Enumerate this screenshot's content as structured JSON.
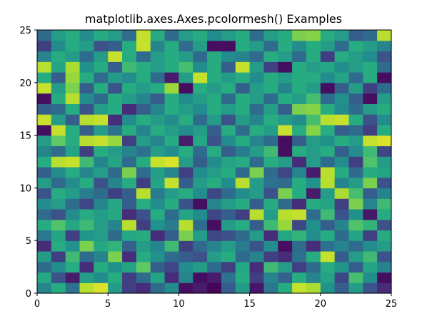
{
  "chart_data": {
    "type": "heatmap",
    "title": "matplotlib.axes.Axes.pcolormesh() Examples",
    "xlabel": "",
    "ylabel": "",
    "xlim": [
      0,
      25
    ],
    "ylim": [
      0,
      25
    ],
    "xticks": [
      0,
      5,
      10,
      15,
      20,
      25
    ],
    "yticks": [
      0,
      5,
      10,
      15,
      20,
      25
    ],
    "grid": false,
    "colormap": "viridis",
    "value_range": [
      0,
      1
    ],
    "rows": 25,
    "cols": 25,
    "values": [
      [
        0.45,
        0.62,
        0.38,
        0.9,
        0.95,
        0.55,
        0.2,
        0.15,
        0.35,
        0.48,
        0.05,
        0.1,
        0.02,
        0.3,
        0.55,
        0.08,
        0.4,
        0.62,
        0.92,
        0.88,
        0.5,
        0.3,
        0.55,
        0.25,
        0.15
      ],
      [
        0.6,
        0.25,
        0.1,
        0.55,
        0.48,
        0.62,
        0.2,
        0.35,
        0.58,
        0.15,
        0.45,
        0.05,
        0.1,
        0.38,
        0.62,
        0.2,
        0.45,
        0.32,
        0.62,
        0.45,
        0.58,
        0.22,
        0.7,
        0.48,
        0.05
      ],
      [
        0.35,
        0.48,
        0.62,
        0.15,
        0.62,
        0.5,
        0.58,
        0.75,
        0.3,
        0.22,
        0.48,
        0.55,
        0.35,
        0.2,
        0.6,
        0.15,
        0.68,
        0.55,
        0.2,
        0.35,
        0.62,
        0.52,
        0.3,
        0.58,
        0.45
      ],
      [
        0.55,
        0.2,
        0.68,
        0.35,
        0.45,
        0.8,
        0.15,
        0.62,
        0.5,
        0.35,
        0.3,
        0.25,
        0.55,
        0.62,
        0.35,
        0.45,
        0.2,
        0.15,
        0.38,
        0.62,
        0.92,
        0.3,
        0.55,
        0.68,
        0.25
      ],
      [
        0.15,
        0.62,
        0.5,
        0.8,
        0.6,
        0.65,
        0.32,
        0.55,
        0.45,
        0.68,
        0.2,
        0.35,
        0.45,
        0.55,
        0.42,
        0.25,
        0.48,
        0.05,
        0.35,
        0.15,
        0.38,
        0.45,
        0.35,
        0.48,
        0.55
      ],
      [
        0.4,
        0.58,
        0.2,
        0.52,
        0.55,
        0.35,
        0.6,
        0.62,
        0.15,
        0.3,
        0.8,
        0.55,
        0.22,
        0.25,
        0.35,
        0.55,
        0.15,
        0.6,
        0.65,
        0.48,
        0.62,
        0.35,
        0.58,
        0.2,
        0.62
      ],
      [
        0.62,
        0.72,
        0.6,
        0.68,
        0.55,
        0.45,
        0.9,
        0.2,
        0.5,
        0.42,
        0.9,
        0.35,
        0.05,
        0.55,
        0.62,
        0.3,
        0.68,
        0.85,
        0.22,
        0.5,
        0.3,
        0.45,
        0.72,
        0.65,
        0.25
      ],
      [
        0.35,
        0.25,
        0.48,
        0.62,
        0.55,
        0.6,
        0.15,
        0.25,
        0.62,
        0.35,
        0.58,
        0.48,
        0.22,
        0.3,
        0.2,
        0.9,
        0.55,
        0.9,
        0.92,
        0.35,
        0.68,
        0.25,
        0.5,
        0.08,
        0.62
      ],
      [
        0.48,
        0.55,
        0.35,
        0.22,
        0.45,
        0.6,
        0.3,
        0.62,
        0.48,
        0.62,
        0.25,
        0.05,
        0.45,
        0.55,
        0.62,
        0.3,
        0.62,
        0.35,
        0.15,
        0.62,
        0.58,
        0.2,
        0.8,
        0.45,
        0.68
      ],
      [
        0.25,
        0.62,
        0.55,
        0.42,
        0.35,
        0.2,
        0.3,
        0.9,
        0.42,
        0.55,
        0.62,
        0.48,
        0.22,
        0.35,
        0.48,
        0.55,
        0.25,
        0.8,
        0.62,
        0.1,
        0.55,
        0.88,
        0.7,
        0.3,
        0.45
      ],
      [
        0.55,
        0.35,
        0.48,
        0.62,
        0.25,
        0.45,
        0.62,
        0.2,
        0.58,
        0.92,
        0.3,
        0.55,
        0.62,
        0.48,
        0.9,
        0.55,
        0.38,
        0.35,
        0.62,
        0.5,
        0.9,
        0.45,
        0.55,
        0.8,
        0.25
      ],
      [
        0.3,
        0.48,
        0.62,
        0.45,
        0.55,
        0.35,
        0.8,
        0.35,
        0.55,
        0.45,
        0.2,
        0.48,
        0.55,
        0.62,
        0.35,
        0.8,
        0.35,
        0.22,
        0.45,
        0.1,
        0.9,
        0.62,
        0.35,
        0.62,
        0.58
      ],
      [
        0.62,
        0.9,
        0.92,
        0.68,
        0.45,
        0.58,
        0.35,
        0.62,
        0.92,
        0.95,
        0.55,
        0.3,
        0.48,
        0.58,
        0.62,
        0.35,
        0.62,
        0.55,
        0.15,
        0.55,
        0.35,
        0.48,
        0.2,
        0.72,
        0.55
      ],
      [
        0.45,
        0.35,
        0.58,
        0.2,
        0.62,
        0.55,
        0.45,
        0.38,
        0.55,
        0.48,
        0.62,
        0.35,
        0.62,
        0.3,
        0.42,
        0.55,
        0.68,
        0.05,
        0.62,
        0.55,
        0.62,
        0.3,
        0.48,
        0.68,
        0.22
      ],
      [
        0.55,
        0.75,
        0.62,
        0.9,
        0.92,
        0.85,
        0.2,
        0.55,
        0.45,
        0.62,
        0.1,
        0.6,
        0.25,
        0.48,
        0.62,
        0.45,
        0.35,
        0.05,
        0.3,
        0.55,
        0.5,
        0.62,
        0.55,
        0.92,
        0.95
      ],
      [
        0.05,
        0.92,
        0.62,
        0.3,
        0.55,
        0.38,
        0.62,
        0.45,
        0.62,
        0.55,
        0.48,
        0.55,
        0.3,
        0.62,
        0.35,
        0.62,
        0.55,
        0.92,
        0.62,
        0.82,
        0.62,
        0.3,
        0.35,
        0.2,
        0.62
      ],
      [
        0.92,
        0.55,
        0.3,
        0.9,
        0.92,
        0.15,
        0.48,
        0.62,
        0.55,
        0.48,
        0.62,
        0.35,
        0.55,
        0.25,
        0.55,
        0.45,
        0.62,
        0.55,
        0.48,
        0.7,
        0.9,
        0.92,
        0.62,
        0.25,
        0.48
      ],
      [
        0.3,
        0.35,
        0.62,
        0.25,
        0.55,
        0.62,
        0.15,
        0.3,
        0.45,
        0.62,
        0.55,
        0.48,
        0.62,
        0.55,
        0.62,
        0.35,
        0.55,
        0.3,
        0.8,
        0.82,
        0.62,
        0.48,
        0.35,
        0.55,
        0.62
      ],
      [
        0.05,
        0.62,
        0.9,
        0.48,
        0.35,
        0.62,
        0.55,
        0.45,
        0.3,
        0.62,
        0.48,
        0.55,
        0.62,
        0.35,
        0.62,
        0.55,
        0.35,
        0.62,
        0.55,
        0.7,
        0.35,
        0.5,
        0.3,
        0.05,
        0.55
      ],
      [
        0.92,
        0.55,
        0.8,
        0.3,
        0.62,
        0.25,
        0.62,
        0.55,
        0.62,
        0.85,
        0.05,
        0.62,
        0.55,
        0.62,
        0.3,
        0.55,
        0.62,
        0.45,
        0.62,
        0.55,
        0.05,
        0.3,
        0.55,
        0.2,
        0.35
      ],
      [
        0.62,
        0.3,
        0.85,
        0.62,
        0.35,
        0.55,
        0.48,
        0.62,
        0.35,
        0.1,
        0.55,
        0.92,
        0.62,
        0.55,
        0.62,
        0.48,
        0.62,
        0.55,
        0.62,
        0.62,
        0.48,
        0.58,
        0.35,
        0.62,
        0.05
      ],
      [
        0.9,
        0.58,
        0.88,
        0.5,
        0.62,
        0.3,
        0.68,
        0.62,
        0.55,
        0.62,
        0.7,
        0.48,
        0.62,
        0.3,
        0.92,
        0.55,
        0.2,
        0.05,
        0.62,
        0.55,
        0.6,
        0.48,
        0.55,
        0.62,
        0.35
      ],
      [
        0.45,
        0.62,
        0.55,
        0.35,
        0.55,
        0.92,
        0.62,
        0.35,
        0.55,
        0.62,
        0.55,
        0.35,
        0.62,
        0.48,
        0.45,
        0.35,
        0.62,
        0.55,
        0.35,
        0.62,
        0.2,
        0.62,
        0.55,
        0.48,
        0.25
      ],
      [
        0.2,
        0.48,
        0.62,
        0.55,
        0.25,
        0.3,
        0.62,
        0.92,
        0.45,
        0.62,
        0.35,
        0.55,
        0.05,
        0.05,
        0.62,
        0.55,
        0.35,
        0.62,
        0.48,
        0.62,
        0.55,
        0.35,
        0.62,
        0.55,
        0.45
      ],
      [
        0.35,
        0.55,
        0.62,
        0.48,
        0.62,
        0.55,
        0.35,
        0.92,
        0.62,
        0.35,
        0.55,
        0.62,
        0.48,
        0.55,
        0.62,
        0.35,
        0.55,
        0.62,
        0.8,
        0.82,
        0.62,
        0.55,
        0.3,
        0.35,
        0.9
      ]
    ]
  }
}
